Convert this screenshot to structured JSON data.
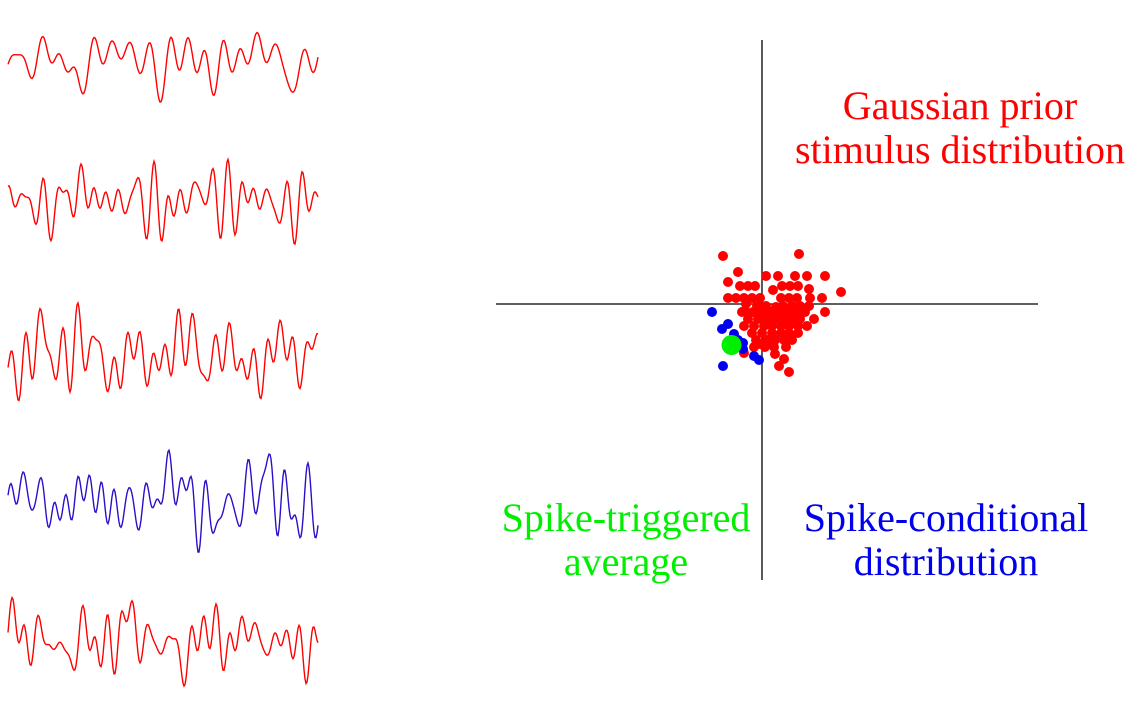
{
  "colors": {
    "prior": "#ff0000",
    "conditional": "#0000ee",
    "sta": "#00ee00",
    "axis": "#000000",
    "spike_trace": "#2a10c8"
  },
  "labels": {
    "prior_line1": "Gaussian prior",
    "prior_line2": "stimulus distribution",
    "sta_line1": "Spike-triggered",
    "sta_line2": "average",
    "cond_line1": "Spike-conditional",
    "cond_line2": "distribution"
  },
  "traces": [
    {
      "role": "stimulus",
      "color_key": "prior"
    },
    {
      "role": "stimulus",
      "color_key": "prior"
    },
    {
      "role": "stimulus",
      "color_key": "prior"
    },
    {
      "role": "spike-triggered stimulus",
      "color_key": "spike_trace"
    },
    {
      "role": "stimulus",
      "color_key": "prior"
    }
  ],
  "scatter": {
    "prior_points": [
      [
        -3.9,
        4.8
      ],
      [
        -2.4,
        3.2
      ],
      [
        -3.4,
        2.2
      ],
      [
        -2.2,
        1.8
      ],
      [
        -1.4,
        1.8
      ],
      [
        -0.7,
        1.8
      ],
      [
        0.4,
        2.8
      ],
      [
        1.6,
        2.8
      ],
      [
        3.3,
        2.8
      ],
      [
        3.7,
        5.0
      ],
      [
        4.5,
        2.8
      ],
      [
        6.3,
        2.8
      ],
      [
        2.0,
        1.8
      ],
      [
        2.8,
        1.8
      ],
      [
        3.6,
        1.8
      ],
      [
        4.7,
        1.5
      ],
      [
        7.9,
        1.2
      ],
      [
        -3.4,
        0.6
      ],
      [
        -2.6,
        0.6
      ],
      [
        -1.8,
        0.6
      ],
      [
        -1.0,
        0.6
      ],
      [
        -0.2,
        0.6
      ],
      [
        1.1,
        1.4
      ],
      [
        1.9,
        0.6
      ],
      [
        2.7,
        0.6
      ],
      [
        3.5,
        0.6
      ],
      [
        4.8,
        0.6
      ],
      [
        6.0,
        0.6
      ],
      [
        -1.6,
        0.0
      ],
      [
        -0.5,
        -0.2
      ],
      [
        0.4,
        -0.2
      ],
      [
        1.4,
        -0.3
      ],
      [
        2.1,
        -0.2
      ],
      [
        3.0,
        -0.2
      ],
      [
        3.8,
        -0.2
      ],
      [
        4.7,
        -0.2
      ],
      [
        -2.0,
        -0.8
      ],
      [
        -0.9,
        -0.8
      ],
      [
        0.0,
        -0.8
      ],
      [
        0.9,
        -0.8
      ],
      [
        1.8,
        -0.8
      ],
      [
        2.6,
        -0.8
      ],
      [
        3.4,
        -0.8
      ],
      [
        4.3,
        -0.8
      ],
      [
        6.3,
        -0.8
      ],
      [
        -1.4,
        -1.5
      ],
      [
        -0.4,
        -1.5
      ],
      [
        0.5,
        -1.5
      ],
      [
        1.3,
        -1.5
      ],
      [
        2.2,
        -1.5
      ],
      [
        3.0,
        -1.5
      ],
      [
        3.8,
        -1.5
      ],
      [
        5.2,
        -1.5
      ],
      [
        -1.8,
        -2.2
      ],
      [
        -0.8,
        -2.2
      ],
      [
        0.2,
        -2.2
      ],
      [
        1.0,
        -2.2
      ],
      [
        1.9,
        -2.2
      ],
      [
        2.7,
        -2.2
      ],
      [
        3.6,
        -2.2
      ],
      [
        4.5,
        -2.2
      ],
      [
        -1.0,
        -2.9
      ],
      [
        0.0,
        -2.9
      ],
      [
        1.0,
        -2.9
      ],
      [
        1.9,
        -2.9
      ],
      [
        2.7,
        -2.9
      ],
      [
        3.6,
        -2.9
      ],
      [
        -0.6,
        -3.6
      ],
      [
        0.5,
        -3.6
      ],
      [
        1.3,
        -3.6
      ],
      [
        2.2,
        -3.6
      ],
      [
        3.0,
        -3.6
      ],
      [
        -0.8,
        -4.3
      ],
      [
        0.3,
        -4.3
      ],
      [
        1.2,
        -4.3
      ],
      [
        2.4,
        -4.3
      ],
      [
        1.3,
        -5.0
      ],
      [
        2.2,
        -5.5
      ],
      [
        1.7,
        -6.2
      ],
      [
        2.7,
        -6.8
      ],
      [
        -1.8,
        -4.9
      ],
      [
        -0.2,
        -4.0
      ],
      [
        0.9,
        -3.8
      ],
      [
        -1.4,
        -0.9
      ]
    ],
    "conditional_points": [
      [
        -5.0,
        -0.8
      ],
      [
        -4.0,
        -2.5
      ],
      [
        -3.4,
        -2.0
      ],
      [
        -2.8,
        -3.0
      ],
      [
        -2.4,
        -3.6
      ],
      [
        -3.2,
        -3.9
      ],
      [
        -1.9,
        -3.9
      ],
      [
        -1.9,
        -4.5
      ],
      [
        -0.8,
        -5.2
      ],
      [
        -0.3,
        -5.6
      ],
      [
        -3.9,
        -6.2
      ]
    ],
    "sta_point": [
      -3.05,
      -4.1
    ]
  }
}
